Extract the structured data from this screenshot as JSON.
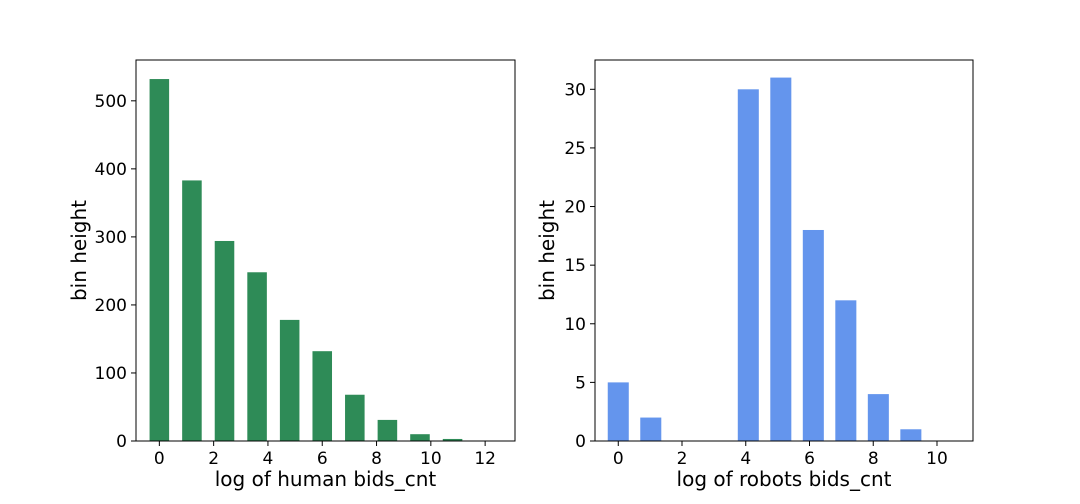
{
  "chart_data": [
    {
      "type": "bar",
      "x": [
        0,
        1.2,
        2.4,
        3.6,
        4.8,
        6.0,
        7.2,
        8.4,
        9.6,
        10.8,
        12.0
      ],
      "values": [
        532,
        383,
        294,
        248,
        178,
        132,
        68,
        31,
        10,
        3,
        0
      ],
      "xlabel": "log of human bids_cnt",
      "ylabel": "bin height",
      "xlim": [
        -0.86,
        13.1
      ],
      "ylim": [
        0,
        560
      ],
      "xticks": [
        0,
        2,
        4,
        6,
        8,
        10,
        12
      ],
      "xtick_labels": [
        "0",
        "2",
        "4",
        "6",
        "8",
        "10",
        "12"
      ],
      "yticks": [
        0,
        100,
        200,
        300,
        400,
        500
      ],
      "ytick_labels": [
        "0",
        "100",
        "200",
        "300",
        "400",
        "500"
      ],
      "bar_color": "#2e8b57",
      "grid": false
    },
    {
      "type": "bar",
      "x": [
        0,
        1.02,
        2.04,
        3.06,
        4.08,
        5.1,
        6.12,
        7.14,
        8.16,
        9.18,
        10.2
      ],
      "values": [
        5,
        2,
        0,
        0,
        30,
        31,
        18,
        12,
        4,
        1,
        0
      ],
      "xlabel": "log of robots bids_cnt",
      "ylabel": "bin height",
      "xlim": [
        -0.73,
        11.13
      ],
      "ylim": [
        0,
        32.5
      ],
      "xticks": [
        0,
        2,
        4,
        6,
        8,
        10
      ],
      "xtick_labels": [
        "0",
        "2",
        "4",
        "6",
        "8",
        "10"
      ],
      "yticks": [
        0,
        5,
        10,
        15,
        20,
        25,
        30
      ],
      "ytick_labels": [
        "0",
        "5",
        "10",
        "15",
        "20",
        "25",
        "30"
      ],
      "bar_color": "#6495ed",
      "grid": false
    }
  ]
}
